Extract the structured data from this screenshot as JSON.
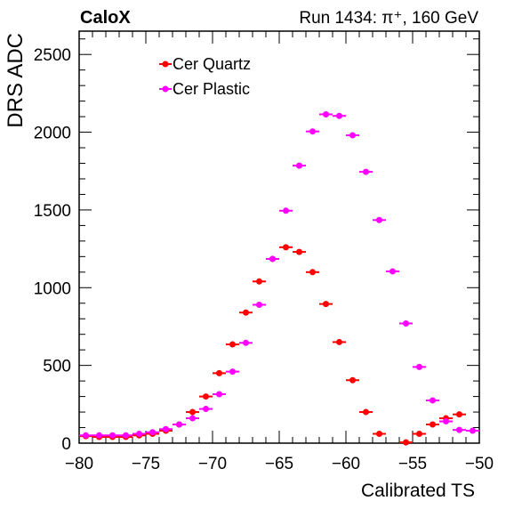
{
  "header": {
    "experiment": "CaloX",
    "run_info": "Run 1434:   π⁺, 160 GeV"
  },
  "chart_data": {
    "type": "scatter",
    "xlabel": "Calibrated TS",
    "ylabel": "DRS ADC",
    "xlim": [
      -80,
      -50
    ],
    "ylim": [
      0,
      2650
    ],
    "x_ticks": [
      "−80",
      "−75",
      "−70",
      "−65",
      "−60",
      "−55",
      "−50"
    ],
    "y_ticks": [
      "0",
      "500",
      "1000",
      "1500",
      "2000",
      "2500"
    ],
    "x_tick_values": [
      -80,
      -75,
      -70,
      -65,
      -60,
      -55,
      -50
    ],
    "y_tick_values": [
      0,
      500,
      1000,
      1500,
      2000,
      2500
    ],
    "bin_width": 1,
    "legend_position": "top-left",
    "series": [
      {
        "name": "Cer Quartz",
        "color": "#ff0000",
        "x": [
          -79.5,
          -78.5,
          -77.5,
          -76.5,
          -75.5,
          -74.5,
          -73.5,
          -72.5,
          -71.5,
          -70.5,
          -69.5,
          -68.5,
          -67.5,
          -66.5,
          -65.5,
          -64.5,
          -63.5,
          -62.5,
          -61.5,
          -60.5,
          -59.5,
          -58.5,
          -57.5,
          -56.5,
          -55.5,
          -54.5,
          -53.5,
          -52.5,
          -51.5,
          -50.5
        ],
        "y": [
          45,
          40,
          40,
          40,
          50,
          60,
          80,
          120,
          200,
          300,
          450,
          635,
          840,
          1040,
          1185,
          1260,
          1230,
          1100,
          895,
          650,
          405,
          200,
          60,
          null,
          5,
          60,
          120,
          160,
          185,
          null
        ]
      },
      {
        "name": "Cer Plastic",
        "color": "#ff00ff",
        "x": [
          -79.5,
          -78.5,
          -77.5,
          -76.5,
          -75.5,
          -74.5,
          -73.5,
          -72.5,
          -71.5,
          -70.5,
          -69.5,
          -68.5,
          -67.5,
          -66.5,
          -65.5,
          -64.5,
          -63.5,
          -62.5,
          -61.5,
          -60.5,
          -59.5,
          -58.5,
          -57.5,
          -56.5,
          -55.5,
          -54.5,
          -53.5,
          -52.5,
          -51.5,
          -50.5
        ],
        "y": [
          50,
          50,
          50,
          50,
          60,
          70,
          90,
          120,
          160,
          220,
          315,
          460,
          645,
          890,
          1185,
          1495,
          1785,
          2005,
          2115,
          2105,
          1980,
          1745,
          1435,
          1105,
          770,
          490,
          275,
          140,
          85,
          80
        ]
      }
    ]
  }
}
